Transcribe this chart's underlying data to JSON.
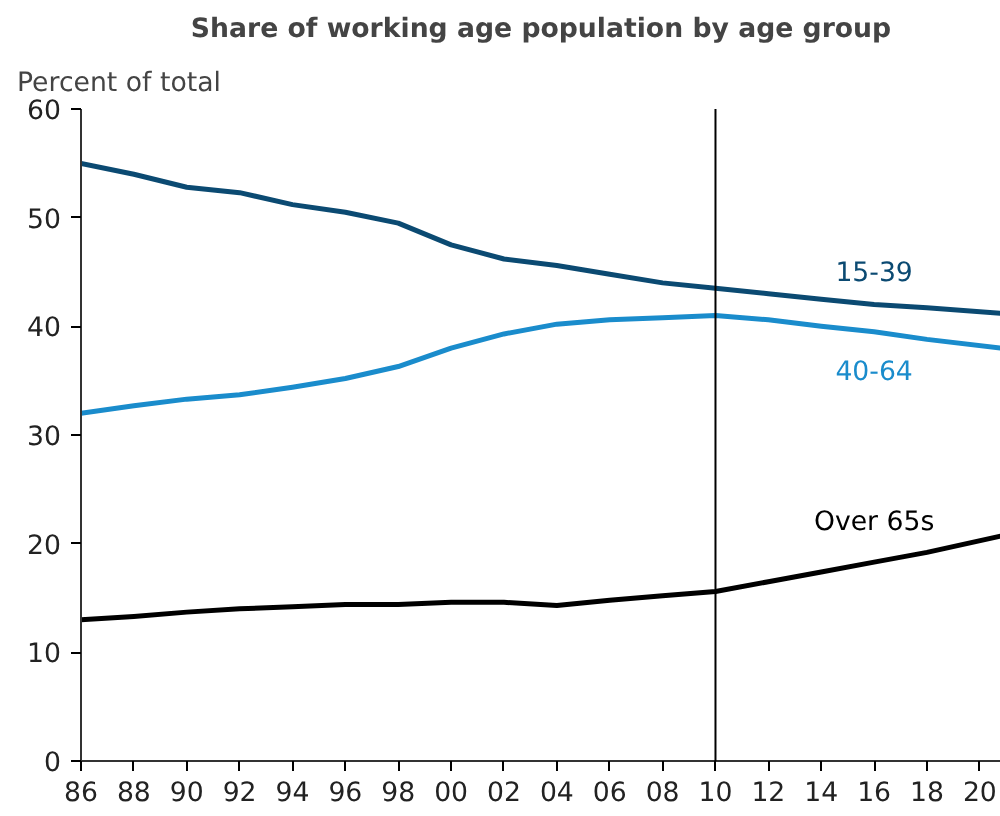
{
  "chart_data": {
    "type": "line",
    "title": "Share of working age population by age group",
    "ylabel": "Percent of total",
    "x": [
      1986,
      1988,
      1990,
      1992,
      1994,
      1996,
      1998,
      2000,
      2002,
      2004,
      2006,
      2008,
      2010,
      2012,
      2014,
      2016,
      2018,
      2020.8
    ],
    "series": [
      {
        "name": "15-39",
        "color": "#0b4a72",
        "values": [
          55,
          54,
          52.8,
          52.3,
          51.2,
          50.5,
          49.5,
          47.5,
          46.2,
          45.6,
          44.8,
          44.0,
          43.5,
          43.0,
          42.5,
          42.0,
          41.7,
          41.2
        ]
      },
      {
        "name": "40-64",
        "color": "#1a8ccc",
        "values": [
          32,
          32.7,
          33.3,
          33.7,
          34.4,
          35.2,
          36.3,
          38.0,
          39.3,
          40.2,
          40.6,
          40.8,
          41.0,
          40.6,
          40.0,
          39.5,
          38.8,
          38.0
        ]
      },
      {
        "name": "Over 65s",
        "color": "#000000",
        "values": [
          13,
          13.3,
          13.7,
          14.0,
          14.2,
          14.4,
          14.4,
          14.6,
          14.6,
          14.3,
          14.8,
          15.2,
          15.6,
          16.5,
          17.4,
          18.3,
          19.2,
          20.7
        ]
      }
    ],
    "xlim": [
      1986,
      2020.8
    ],
    "ylim": [
      0,
      60
    ],
    "yticks": [
      0,
      10,
      20,
      30,
      40,
      50,
      60
    ],
    "xticks": [
      {
        "value": 1986,
        "label": "86"
      },
      {
        "value": 1988,
        "label": "88"
      },
      {
        "value": 1990,
        "label": "90"
      },
      {
        "value": 1992,
        "label": "92"
      },
      {
        "value": 1994,
        "label": "94"
      },
      {
        "value": 1996,
        "label": "96"
      },
      {
        "value": 1998,
        "label": "98"
      },
      {
        "value": 2000,
        "label": "00"
      },
      {
        "value": 2002,
        "label": "02"
      },
      {
        "value": 2004,
        "label": "04"
      },
      {
        "value": 2006,
        "label": "06"
      },
      {
        "value": 2008,
        "label": "08"
      },
      {
        "value": 2010,
        "label": "10"
      },
      {
        "value": 2012,
        "label": "12"
      },
      {
        "value": 2014,
        "label": "14"
      },
      {
        "value": 2016,
        "label": "16"
      },
      {
        "value": 2018,
        "label": "18"
      },
      {
        "value": 2020,
        "label": "20"
      }
    ],
    "ref_lines": [
      {
        "axis": "x",
        "value": 2010,
        "label": null,
        "color": "#000000"
      }
    ],
    "grid": false,
    "legend": false
  }
}
